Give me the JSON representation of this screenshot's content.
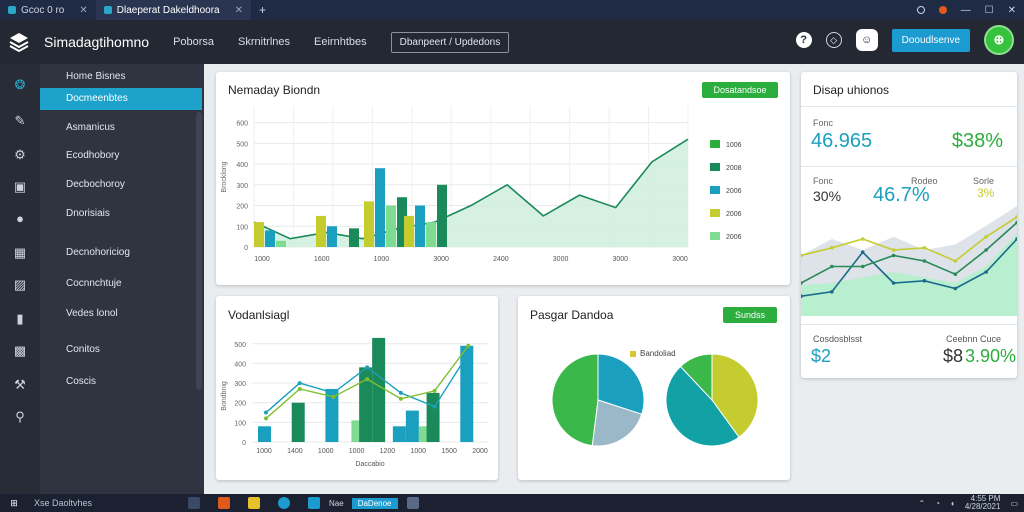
{
  "tabs": [
    {
      "label": "Gcoc 0 ro"
    },
    {
      "label": "Dlaeperat Dakeldhoora"
    }
  ],
  "new_tab": "+",
  "header": {
    "brand": "Simadagtihomno",
    "nav": [
      "Poborsa",
      "Skrnitrlnes",
      "Eeirnhtbes"
    ],
    "nav_button": "Dbanpeert / Updedons",
    "cta": "Dooudlsenve"
  },
  "sidebar": {
    "items": [
      "Home Bisnes",
      "Docmeenbtes",
      "Asmanicus",
      "Ecodhobory",
      "Decbochoroy",
      "Dnorisiais",
      "Decnohoriciog",
      "Cocnnchtuje",
      "Vedes lonol",
      "Conitos",
      "Coscis"
    ]
  },
  "icons": {
    "rail": [
      "analytics-icon",
      "edit-icon",
      "settings-icon",
      "layout-icon",
      "user-icon",
      "grid-icon",
      "image-icon",
      "book-icon",
      "photo-icon",
      "tool-icon",
      "search-icon"
    ]
  },
  "colors": {
    "green": "#2cae3f",
    "teal": "#1a9fbf",
    "dark_green": "#1b8a5a",
    "lime": "#c5cc30",
    "light_green": "#7fdb8f",
    "accent_blue": "#1da2cc"
  },
  "card1": {
    "title": "Nemaday Biondn",
    "button": "Dosatandsoe",
    "legend": [
      "1006",
      "2008",
      "2006",
      "2006",
      "2006"
    ],
    "chart_data": {
      "type": "bar",
      "x_ticks": [
        "1000",
        "1600",
        "1000",
        "3000",
        "2400",
        "3000",
        "3000",
        "3000"
      ],
      "y_ticks": [
        "0",
        "100",
        "200",
        "300",
        "400",
        "500",
        "600"
      ],
      "ylabel": "Brocklong",
      "ylim": [
        0,
        680
      ],
      "categories": [
        "1000",
        "1600",
        "1000",
        "3000"
      ],
      "series": [
        {
          "values": [
            120,
            150,
            220,
            150
          ]
        },
        {
          "values": [
            80,
            100,
            380,
            200
          ]
        },
        {
          "values": [
            30,
            0,
            200,
            120
          ]
        },
        {
          "values": [
            0,
            90,
            240,
            300
          ]
        }
      ],
      "area_line": [
        {
          "x": 0,
          "y": 120
        },
        {
          "x": 1,
          "y": 40
        },
        {
          "x": 2,
          "y": 70
        },
        {
          "x": 3,
          "y": 40
        },
        {
          "x": 4,
          "y": 90
        },
        {
          "x": 5,
          "y": 120
        },
        {
          "x": 6,
          "y": 200
        },
        {
          "x": 7,
          "y": 300
        },
        {
          "x": 8,
          "y": 150
        },
        {
          "x": 9,
          "y": 250
        },
        {
          "x": 10,
          "y": 190
        },
        {
          "x": 11,
          "y": 410
        },
        {
          "x": 12,
          "y": 520
        }
      ]
    }
  },
  "card2": {
    "title": "Disap uhionos",
    "stat1": "46.965",
    "stat1_green": "$38%",
    "label1": "Fonc",
    "label2": "Rodeo",
    "label3": "Sorle",
    "stat2": "30%",
    "stat3": "46.7%",
    "stat4": "3%",
    "footer_left_label": "Cosdosblsst",
    "footer_left_val": "$2",
    "footer_right_label": "Ceebnn Cuce",
    "footer_right_dark": "$8",
    "footer_right_green": "3.90%",
    "chart_data": {
      "type": "line",
      "series": [
        {
          "color": "#c5cc30",
          "values": [
            0.55,
            0.62,
            0.7,
            0.6,
            0.62,
            0.5,
            0.72,
            0.9
          ]
        },
        {
          "color": "#1b6a8c",
          "values": [
            0.18,
            0.22,
            0.58,
            0.3,
            0.32,
            0.25,
            0.4,
            0.7
          ]
        },
        {
          "color": "#2a8a5a",
          "values": [
            0.3,
            0.45,
            0.45,
            0.55,
            0.5,
            0.38,
            0.6,
            0.85
          ]
        }
      ]
    }
  },
  "card3": {
    "title": "Vodanlsiagl",
    "chart_data": {
      "type": "bar",
      "categories": [
        "1000",
        "1400",
        "1000",
        "1000",
        "1200",
        "1000",
        "1500"
      ],
      "x_ticks": [
        "1000",
        "1400",
        "1000",
        "1000",
        "1200",
        "1000",
        "1500",
        "2000"
      ],
      "y_ticks": [
        "0",
        "100",
        "200",
        "300",
        "400",
        "500"
      ],
      "ylabel": "Bondbnig",
      "xlabel": "Daccabio",
      "ylim": [
        0,
        560
      ],
      "series": [
        {
          "values": [
            80,
            200,
            270,
            380,
            80,
            250,
            490
          ]
        },
        {
          "values": [
            0,
            0,
            0,
            530,
            160,
            0,
            0
          ]
        },
        {
          "values": [
            0,
            0,
            110,
            0,
            80,
            0,
            0
          ]
        }
      ],
      "lines": [
        {
          "color": "#1a9fbf",
          "values": [
            150,
            300,
            250,
            380,
            250,
            180,
            450
          ]
        },
        {
          "color": "#7fbf2f",
          "values": [
            120,
            270,
            230,
            320,
            220,
            260,
            490
          ]
        }
      ]
    }
  },
  "card4": {
    "title": "Pasgar Dandoa",
    "button": "Sundss",
    "legend": "Bandoliad",
    "chart_data": {
      "type": "pie",
      "pies": [
        {
          "slices": [
            {
              "value": 30,
              "color": "#1a9fbf"
            },
            {
              "value": 22,
              "color": "#9ab8c8"
            },
            {
              "value": 48,
              "color": "#3cb84a"
            }
          ]
        },
        {
          "slices": [
            {
              "value": 40,
              "color": "#c5cc30"
            },
            {
              "value": 48,
              "color": "#12a2a6"
            },
            {
              "value": 12,
              "color": "#3cb84a"
            }
          ]
        }
      ]
    }
  },
  "taskbar": {
    "search": "Xse Daoltvhes",
    "app_label": "Nae",
    "app_active": "DaDenoe",
    "time": "4:55 PM",
    "date": "4/28/2021"
  }
}
